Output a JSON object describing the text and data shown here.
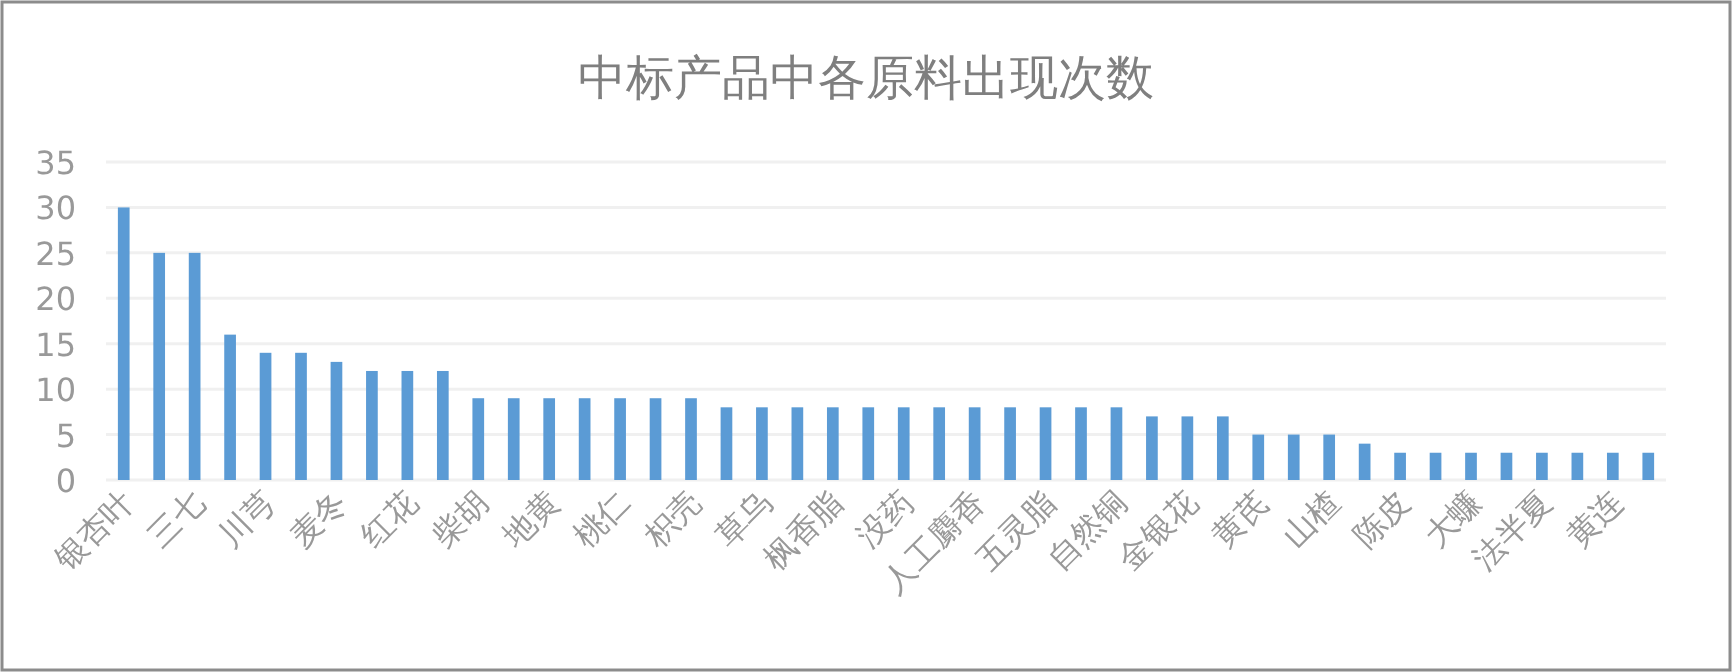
{
  "chart_data": {
    "type": "bar",
    "title": "中标产品中各原料出现次数",
    "categories": [
      "银杏叶",
      null,
      "三七",
      null,
      "川芎",
      null,
      "麦冬",
      null,
      "红花",
      null,
      "柴胡",
      null,
      "地黄",
      null,
      "桃仁",
      null,
      "枳壳",
      null,
      "草乌",
      null,
      "枫香脂",
      null,
      "没药",
      null,
      "人工麝香",
      null,
      "五灵脂",
      null,
      "自然铜",
      null,
      "金银花",
      null,
      "黄芪",
      null,
      "山楂",
      null,
      "陈皮",
      null,
      "大蠊",
      null,
      "法半夏",
      null,
      "黄连",
      null
    ],
    "values": [
      30,
      25,
      25,
      16,
      14,
      14,
      13,
      12,
      12,
      12,
      9,
      9,
      9,
      9,
      9,
      9,
      9,
      8,
      8,
      8,
      8,
      8,
      8,
      8,
      8,
      8,
      8,
      8,
      8,
      7,
      7,
      7,
      5,
      5,
      5,
      4,
      3,
      3,
      3,
      3,
      3,
      3,
      3,
      3
    ],
    "color": "#5b9bd5",
    "ylim": [
      0,
      35
    ],
    "yticks": [
      0,
      5,
      10,
      15,
      20,
      25,
      30,
      35
    ],
    "grid": "y"
  }
}
